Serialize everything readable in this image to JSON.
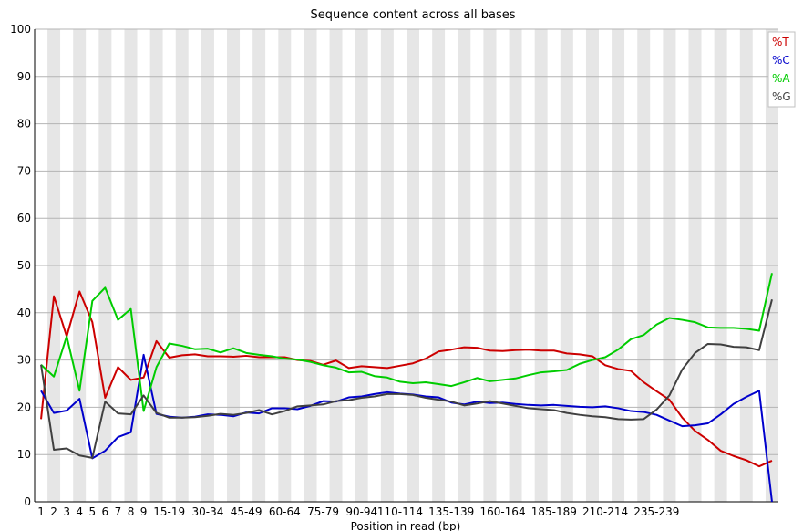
{
  "chart_data": {
    "type": "line",
    "title": "Sequence content across all bases",
    "xlabel": "Position in read (bp)",
    "ylabel": "",
    "ylim": [
      0,
      100
    ],
    "yticks": [
      0,
      10,
      20,
      30,
      40,
      50,
      60,
      70,
      80,
      90,
      100
    ],
    "grid": true,
    "legend_position": "top-right",
    "categories": [
      "1",
      "2",
      "3",
      "4",
      "5",
      "6",
      "7",
      "8",
      "9",
      "10-14",
      "15-19",
      "20-24",
      "25-29",
      "30-34",
      "35-39",
      "40-44",
      "45-49",
      "50-54",
      "55-59",
      "60-64",
      "65-69",
      "70-74",
      "75-79",
      "80-84",
      "85-89",
      "90-94",
      "95-99",
      "100-104",
      "105-109",
      "110-114",
      "115-119",
      "120-124",
      "125-129",
      "130-134",
      "135-139",
      "140-144",
      "145-149",
      "150-154",
      "155-159",
      "160-164",
      "165-169",
      "170-174",
      "175-179",
      "180-184",
      "185-189",
      "190-194",
      "195-199",
      "200-204",
      "205-209",
      "210-214",
      "215-219",
      "220-224",
      "225-229",
      "230-234",
      "235-239",
      "240-244",
      "245-249",
      "250-251"
    ],
    "tick_labels": [
      "1",
      "2",
      "3",
      "4",
      "5",
      "6",
      "7",
      "8",
      "9",
      "",
      "15-19",
      "",
      "",
      "30-34",
      "",
      "",
      "45-49",
      "",
      "",
      "60-64",
      "",
      "",
      "75-79",
      "",
      "",
      "90-94",
      "",
      "",
      "110-114",
      "",
      "",
      "",
      "135-139",
      "",
      "",
      "",
      "160-164",
      "",
      "",
      "",
      "185-189",
      "",
      "",
      "",
      "210-214",
      "",
      "",
      "",
      "235-239",
      "",
      "",
      "",
      "",
      "",
      "",
      "",
      "",
      ""
    ],
    "series": [
      {
        "name": "%T",
        "color": "#cc0000",
        "values": [
          17.5,
          43.5,
          35,
          44.5,
          38,
          22,
          28.5,
          25.8,
          26.3,
          34,
          30.5,
          31,
          31.2,
          30.8,
          30.8,
          30.7,
          30.9,
          30.6,
          30.6,
          30.6,
          30,
          29.8,
          29,
          29.9,
          28.3,
          28.7,
          28.5,
          28.3,
          28.8,
          29.3,
          30.3,
          31.8,
          32.2,
          32.7,
          32.6,
          32,
          31.9,
          32.1,
          32.2,
          32,
          32,
          31.4,
          31.2,
          30.8,
          28.9,
          28.1,
          27.7,
          25.3,
          23.4,
          21.6,
          17.8,
          15,
          13.1,
          10.8,
          9.7,
          8.8,
          7.5,
          8.7
        ]
      },
      {
        "name": "%C",
        "color": "#0000cc",
        "values": [
          23.5,
          18.8,
          19.3,
          21.8,
          9.2,
          10.8,
          13.7,
          14.7,
          31.1,
          18.6,
          18,
          17.8,
          18,
          18.5,
          18.4,
          18.1,
          18.9,
          18.7,
          19.8,
          19.8,
          19.6,
          20.3,
          21.3,
          21.2,
          22.1,
          22.3,
          22.8,
          23.2,
          22.9,
          22.7,
          22.3,
          22.1,
          21,
          20.6,
          21.2,
          20.9,
          21,
          20.7,
          20.5,
          20.4,
          20.5,
          20.3,
          20.1,
          20,
          20.2,
          19.8,
          19.2,
          19,
          18.4,
          17.2,
          16,
          16.2,
          16.6,
          18.5,
          20.7,
          22.2,
          23.5,
          0
        ]
      },
      {
        "name": "%A",
        "color": "#00cc00",
        "values": [
          29,
          26.5,
          35,
          23.5,
          42.5,
          45.3,
          38.5,
          40.8,
          19.2,
          28.5,
          33.5,
          33,
          32.3,
          32.4,
          31.6,
          32.5,
          31.5,
          31.1,
          30.8,
          30.3,
          30.1,
          29.6,
          28.9,
          28.4,
          27.4,
          27.5,
          26.6,
          26.3,
          25.4,
          25.1,
          25.3,
          24.9,
          24.5,
          25.3,
          26.2,
          25.5,
          25.8,
          26.1,
          26.8,
          27.4,
          27.6,
          27.9,
          29.2,
          30,
          30.6,
          32.2,
          34.4,
          35.3,
          37.5,
          38.9,
          38.5,
          38,
          36.9,
          36.8,
          36.8,
          36.6,
          36.2,
          48.4
        ]
      },
      {
        "name": "%G",
        "color": "#404040",
        "values": [
          29,
          11,
          11.3,
          9.8,
          9.3,
          21.2,
          18.7,
          18.5,
          22.5,
          18.8,
          17.8,
          17.8,
          17.9,
          18.2,
          18.6,
          18.4,
          18.8,
          19.4,
          18.5,
          19.2,
          20.2,
          20.4,
          20.6,
          21.3,
          21.5,
          22,
          22.3,
          22.8,
          22.8,
          22.6,
          22,
          21.6,
          21.2,
          20.4,
          20.8,
          21.3,
          20.8,
          20.3,
          19.8,
          19.6,
          19.4,
          18.8,
          18.4,
          18.1,
          17.9,
          17.5,
          17.4,
          17.5,
          19.5,
          22.5,
          28,
          31.5,
          33.4,
          33.3,
          32.8,
          32.7,
          32.1,
          42.8
        ]
      }
    ]
  }
}
